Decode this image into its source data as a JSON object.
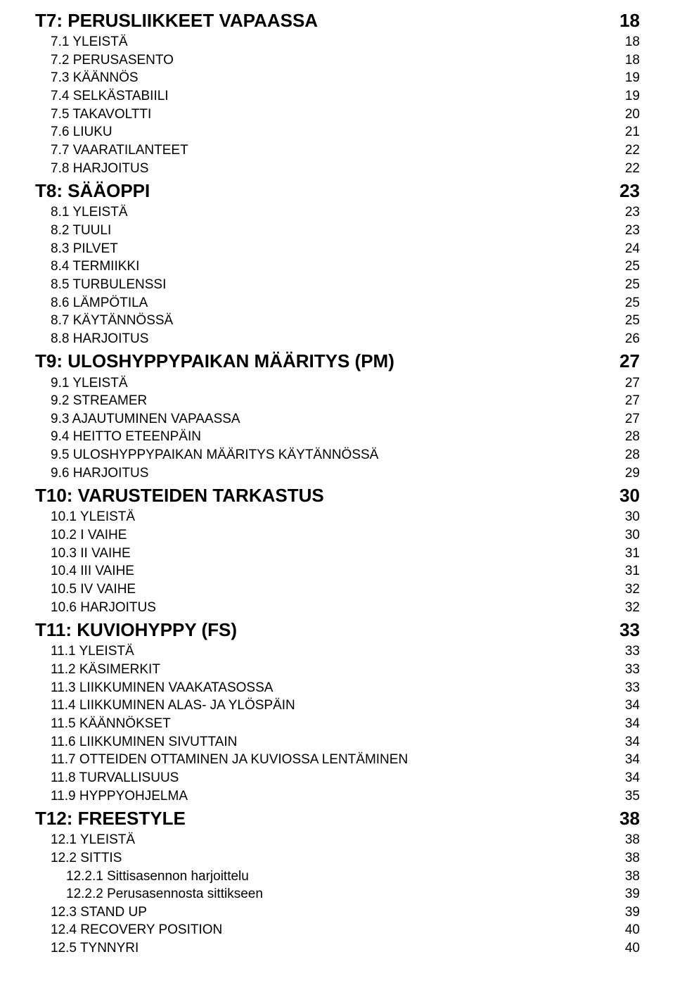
{
  "toc": [
    {
      "level": 0,
      "label": "T7: PERUSLIIKKEET VAPAASSA",
      "page": "18"
    },
    {
      "level": 1,
      "label": "7.1 YLEISTÄ",
      "page": "18"
    },
    {
      "level": 1,
      "label": "7.2 PERUSASENTO",
      "page": "18"
    },
    {
      "level": 1,
      "label": "7.3 KÄÄNNÖS",
      "page": "19"
    },
    {
      "level": 1,
      "label": "7.4 SELKÄSTABIILI",
      "page": "19"
    },
    {
      "level": 1,
      "label": "7.5 TAKAVOLTTI",
      "page": "20"
    },
    {
      "level": 1,
      "label": "7.6 LIUKU",
      "page": "21"
    },
    {
      "level": 1,
      "label": "7.7 VAARATILANTEET",
      "page": "22"
    },
    {
      "level": 1,
      "label": "7.8 HARJOITUS",
      "page": "22"
    },
    {
      "level": 0,
      "label": "T8: SÄÄOPPI",
      "page": "23"
    },
    {
      "level": 1,
      "label": "8.1 YLEISTÄ",
      "page": "23"
    },
    {
      "level": 1,
      "label": "8.2 TUULI",
      "page": "23"
    },
    {
      "level": 1,
      "label": "8.3 PILVET",
      "page": "24"
    },
    {
      "level": 1,
      "label": "8.4 TERMIIKKI",
      "page": "25"
    },
    {
      "level": 1,
      "label": "8.5 TURBULENSSI",
      "page": "25"
    },
    {
      "level": 1,
      "label": "8.6 LÄMPÖTILA",
      "page": "25"
    },
    {
      "level": 1,
      "label": "8.7 KÄYTÄNNÖSSÄ",
      "page": "25"
    },
    {
      "level": 1,
      "label": "8.8 HARJOITUS",
      "page": "26"
    },
    {
      "level": 0,
      "label": "T9: ULOSHYPPYPAIKAN MÄÄRITYS (PM)",
      "page": "27"
    },
    {
      "level": 1,
      "label": "9.1 YLEISTÄ",
      "page": "27"
    },
    {
      "level": 1,
      "label": "9.2 STREAMER",
      "page": "27"
    },
    {
      "level": 1,
      "label": "9.3 AJAUTUMINEN VAPAASSA",
      "page": "27"
    },
    {
      "level": 1,
      "label": "9.4 HEITTO ETEENPÄIN",
      "page": "28"
    },
    {
      "level": 1,
      "label": "9.5 ULOSHYPPYPAIKAN MÄÄRITYS KÄYTÄNNÖSSÄ",
      "page": "28"
    },
    {
      "level": 1,
      "label": "9.6 HARJOITUS",
      "page": "29"
    },
    {
      "level": 0,
      "label": "T10: VARUSTEIDEN TARKASTUS",
      "page": "30"
    },
    {
      "level": 1,
      "label": "10.1 YLEISTÄ",
      "page": "30"
    },
    {
      "level": 1,
      "label": "10.2 I VAIHE",
      "page": "30"
    },
    {
      "level": 1,
      "label": "10.3 II VAIHE",
      "page": "31"
    },
    {
      "level": 1,
      "label": "10.4 III VAIHE",
      "page": "31"
    },
    {
      "level": 1,
      "label": "10.5 IV VAIHE",
      "page": "32"
    },
    {
      "level": 1,
      "label": "10.6 HARJOITUS",
      "page": "32"
    },
    {
      "level": 0,
      "label": "T11: KUVIOHYPPY (FS)",
      "page": "33"
    },
    {
      "level": 1,
      "label": "11.1 YLEISTÄ",
      "page": "33"
    },
    {
      "level": 1,
      "label": "11.2 KÄSIMERKIT",
      "page": "33"
    },
    {
      "level": 1,
      "label": "11.3 LIIKKUMINEN VAAKATASOSSA",
      "page": "33"
    },
    {
      "level": 1,
      "label": "11.4 LIIKKUMINEN ALAS- JA YLÖSPÄIN",
      "page": "34"
    },
    {
      "level": 1,
      "label": "11.5 KÄÄNNÖKSET",
      "page": "34"
    },
    {
      "level": 1,
      "label": "11.6 LIIKKUMINEN SIVUTTAIN",
      "page": "34"
    },
    {
      "level": 1,
      "label": "11.7 OTTEIDEN OTTAMINEN JA KUVIOSSA LENTÄMINEN",
      "page": "34"
    },
    {
      "level": 1,
      "label": "11.8 TURVALLISUUS",
      "page": "34"
    },
    {
      "level": 1,
      "label": "11.9 HYPPYOHJELMA",
      "page": "35"
    },
    {
      "level": 0,
      "label": "T12: FREESTYLE",
      "page": "38"
    },
    {
      "level": 1,
      "label": "12.1 YLEISTÄ",
      "page": "38"
    },
    {
      "level": 1,
      "label": "12.2 SITTIS",
      "page": "38"
    },
    {
      "level": 2,
      "label": "12.2.1 Sittisasennon harjoittelu",
      "page": "38"
    },
    {
      "level": 2,
      "label": "12.2.2 Perusasennosta sittikseen",
      "page": "39"
    },
    {
      "level": 1,
      "label": "12.3 STAND UP",
      "page": "39"
    },
    {
      "level": 1,
      "label": "12.4 RECOVERY POSITION",
      "page": "40"
    },
    {
      "level": 1,
      "label": "12.5 TYNNYRI",
      "page": "40"
    }
  ]
}
